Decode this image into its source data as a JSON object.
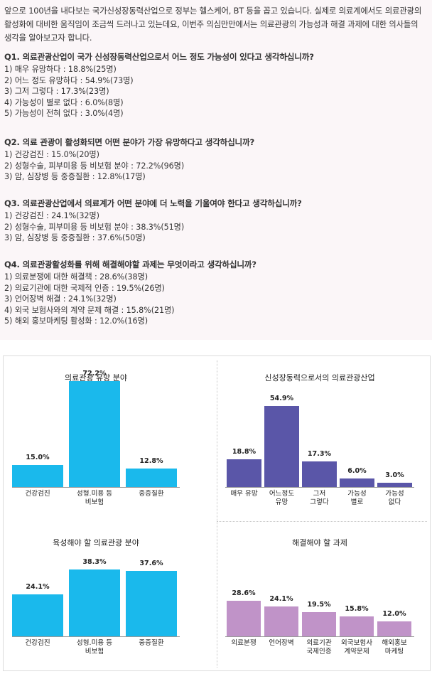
{
  "survey": {
    "intro": "앞으로 100년을 내다보는 국가신성장동력산업으로 정부는 헬스케어, BT 등을 꼽고 있습니다. 실제로 의료계에서도 의료관광의 활성화에 대비한 움직임이 조금씩 드러나고 있는데요, 이번주 의심만만에서는 의료관광의 가능성과 해결 과제에 대한 의사들의 생각을 알아보고자 합니다.",
    "questions": [
      {
        "title": "Q1. 의료관광산업이 국가 신성장동력산업으로서 어느 정도 가능성이 있다고 생각하십니까?",
        "answers": [
          "1) 매우 유망하다 : 18.8%(25명)",
          "2) 어느 정도 유망하다 : 54.9%(73명)",
          "3) 그저 그렇다 : 17.3%(23명)",
          "4) 가능성이 별로 없다 : 6.0%(8명)",
          "5) 가능성이 전혀 없다 : 3.0%(4명)"
        ]
      },
      {
        "title": "Q2. 의료 관광이 활성화되면 어떤 분야가 가장 유망하다고 생각하십니까?",
        "answers": [
          "1) 건강검진 : 15.0%(20명)",
          "2) 성형수술, 피부미용 등 비보험 분야 : 72.2%(96명)",
          "3) 암, 심장병 등 중증질환 : 12.8%(17명)"
        ]
      },
      {
        "title": "Q3. 의료관광산업에서 의료계가 어떤 분야에 더 노력을 기울여야 한다고 생각하십니까?",
        "answers": [
          "1) 건강검진 : 24.1%(32명)",
          "2) 성형수술, 피부미용 등 비보험 분야 : 38.3%(51명)",
          "3) 암, 심장병 등 중증질환 : 37.6%(50명)"
        ]
      },
      {
        "title": "Q4. 의료관광활성화를 위해 해결해야할 과제는 무엇이라고 생각하십니까?",
        "answers": [
          "1) 의료분쟁에 대한 해결책 : 28.6%(38명)",
          "2) 의료기관에 대한 국제적 인증 : 19.5%(26명)",
          "3) 언어장벽 해결 : 24.1%(32명)",
          "4) 외국 보험사와의 계약 문제 해결 : 15.8%(21명)",
          "5) 해외 홍보마케팅 활성화 : 12.0%(16명)"
        ]
      }
    ]
  },
  "chart_data": [
    {
      "type": "bar",
      "title": "의료관광 유망 분야",
      "categories": [
        "건강검진",
        "성형.미용 등\n비보험",
        "중증질환"
      ],
      "values": [
        15.0,
        72.2,
        12.8
      ],
      "value_labels": [
        "15.0%",
        "72.2%",
        "12.8%"
      ],
      "color": "#1ab9ec"
    },
    {
      "type": "bar",
      "title": "신성장동력으로서의 의료관광산업",
      "categories": [
        "매우 유망",
        "어느정도\n유망",
        "그저\n그렇다",
        "가능성\n별로",
        "가능성\n없다"
      ],
      "values": [
        18.8,
        54.9,
        17.3,
        6.0,
        3.0
      ],
      "value_labels": [
        "18.8%",
        "54.9%",
        "17.3%",
        "6.0%",
        "3.0%"
      ],
      "color": "#5a56a8"
    },
    {
      "type": "bar",
      "title": "육성해야 할 의료관광 분야",
      "categories": [
        "건강검진",
        "성형.미용 등\n비보험",
        "중증질환"
      ],
      "values": [
        24.1,
        38.3,
        37.6
      ],
      "value_labels": [
        "24.1%",
        "38.3%",
        "37.6%"
      ],
      "color": "#1ab9ec"
    },
    {
      "type": "bar",
      "title": "해결해야 할 과제",
      "categories": [
        "의료분쟁",
        "언어장벽",
        "의료기관\n국제인증",
        "외국보험사\n계약문제",
        "해외홍보\n마케팅"
      ],
      "values": [
        28.6,
        24.1,
        19.5,
        15.8,
        12.0
      ],
      "value_labels": [
        "28.6%",
        "24.1%",
        "19.5%",
        "15.8%",
        "12.0%"
      ],
      "color": "#c093c8"
    }
  ]
}
